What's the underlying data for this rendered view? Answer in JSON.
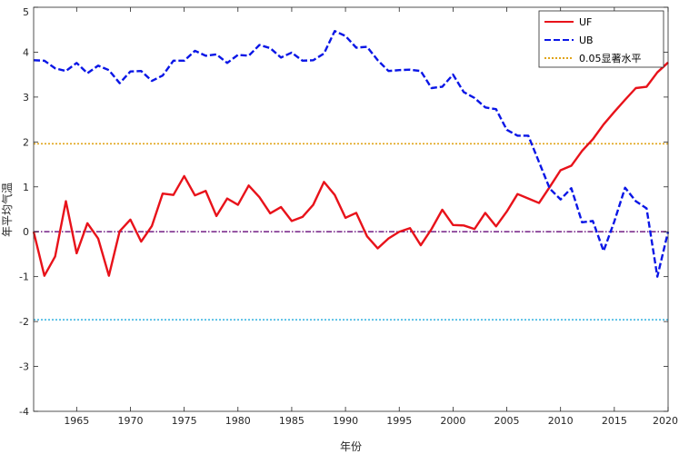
{
  "chart_data": {
    "type": "line",
    "xlabel": "年份",
    "ylabel": "年平均气温",
    "xlim": [
      1961,
      2020
    ],
    "ylim": [
      -4,
      5
    ],
    "xticks": [
      1965,
      1970,
      1975,
      1980,
      1985,
      1990,
      1995,
      2000,
      2005,
      2010,
      2015,
      2020
    ],
    "yticks": [
      -4,
      -3,
      -2,
      -1,
      0,
      1,
      2,
      3,
      4,
      5
    ],
    "grid": false,
    "legend_position": "top-right",
    "x": [
      1961,
      1962,
      1963,
      1964,
      1965,
      1966,
      1967,
      1968,
      1969,
      1970,
      1971,
      1972,
      1973,
      1974,
      1975,
      1976,
      1977,
      1978,
      1979,
      1980,
      1981,
      1982,
      1983,
      1984,
      1985,
      1986,
      1987,
      1988,
      1989,
      1990,
      1991,
      1992,
      1993,
      1994,
      1995,
      1996,
      1997,
      1998,
      1999,
      2000,
      2001,
      2002,
      2003,
      2004,
      2005,
      2006,
      2007,
      2008,
      2009,
      2010,
      2011,
      2012,
      2013,
      2014,
      2015,
      2016,
      2017,
      2018,
      2019,
      2020
    ],
    "series": [
      {
        "name": "UF",
        "color": "#e8121a",
        "style": "solid",
        "values": [
          0,
          -0.98,
          -0.55,
          0.68,
          -0.48,
          0.19,
          -0.15,
          -0.98,
          0.01,
          0.27,
          -0.22,
          0.13,
          0.85,
          0.82,
          1.24,
          0.81,
          0.91,
          0.35,
          0.74,
          0.6,
          1.03,
          0.77,
          0.41,
          0.55,
          0.24,
          0.33,
          0.6,
          1.11,
          0.82,
          0.31,
          0.42,
          -0.1,
          -0.37,
          -0.15,
          0.0,
          0.08,
          -0.3,
          0.06,
          0.49,
          0.15,
          0.14,
          0.06,
          0.42,
          0.12,
          0.45,
          0.84,
          0.74,
          0.64,
          1.0,
          1.37,
          1.47,
          1.8,
          2.06,
          2.39,
          2.67,
          2.94,
          3.2,
          3.23,
          3.55,
          3.77
        ]
      },
      {
        "name": "UB",
        "color": "#0a16e6",
        "style": "dashed",
        "values": [
          3.82,
          3.81,
          3.64,
          3.58,
          3.76,
          3.53,
          3.7,
          3.6,
          3.31,
          3.57,
          3.58,
          3.36,
          3.48,
          3.81,
          3.81,
          4.03,
          3.92,
          3.95,
          3.76,
          3.94,
          3.92,
          4.16,
          4.09,
          3.88,
          3.99,
          3.81,
          3.82,
          3.97,
          4.47,
          4.36,
          4.1,
          4.12,
          3.82,
          3.58,
          3.6,
          3.61,
          3.58,
          3.2,
          3.23,
          3.5,
          3.11,
          2.98,
          2.77,
          2.73,
          2.27,
          2.14,
          2.14,
          1.55,
          0.96,
          0.72,
          0.97,
          0.21,
          0.24,
          -0.43,
          0.23,
          0.98,
          0.68,
          0.52,
          -1.0,
          0.0
        ]
      }
    ],
    "reference_lines": [
      {
        "name": "0.05显著水平",
        "y": 1.96,
        "color": "#e0a41a",
        "style": "dotted"
      },
      {
        "y": -1.96,
        "color": "#30b0e0",
        "style": "dotted"
      },
      {
        "y": 0,
        "color": "#7e2f8e",
        "style": "dashdot"
      }
    ]
  }
}
